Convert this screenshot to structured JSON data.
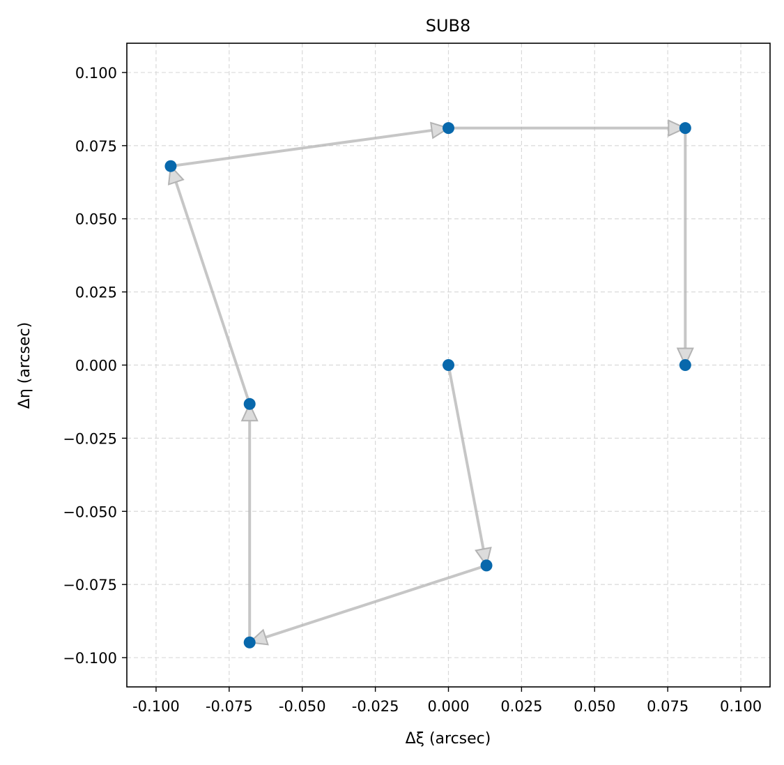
{
  "chart_data": {
    "type": "scatter",
    "title": "SUB8",
    "xlabel": "Δξ (arcsec)",
    "ylabel": "Δη (arcsec)",
    "xlim": [
      -0.11,
      0.11
    ],
    "ylim": [
      -0.11,
      0.11
    ],
    "x_ticks": [
      -0.1,
      -0.075,
      -0.05,
      -0.025,
      0.0,
      0.025,
      0.05,
      0.075,
      0.1
    ],
    "x_tick_labels": [
      "-0.100",
      "-0.075",
      "-0.050",
      "-0.025",
      "0.000",
      "0.025",
      "0.050",
      "0.075",
      "0.100"
    ],
    "y_ticks": [
      0.1,
      0.075,
      0.05,
      0.025,
      0.0,
      -0.025,
      -0.05,
      -0.075,
      -0.1
    ],
    "y_tick_labels": [
      "0.100",
      "0.075",
      "0.050",
      "0.025",
      "0.000",
      "−0.025",
      "−0.050",
      "−0.075",
      "−0.100"
    ],
    "grid": true,
    "points": [
      {
        "x": 0.0,
        "y": 0.0
      },
      {
        "x": 0.013,
        "y": -0.0685
      },
      {
        "x": -0.068,
        "y": -0.0948
      },
      {
        "x": -0.068,
        "y": -0.0133
      },
      {
        "x": -0.095,
        "y": 0.068
      },
      {
        "x": 0.0,
        "y": 0.081
      },
      {
        "x": 0.081,
        "y": 0.081
      },
      {
        "x": 0.081,
        "y": 0.0
      }
    ],
    "path_order": "sequential arrows from each point to the next",
    "colors": {
      "point": "#0868ac",
      "arrow": "#b3b3b3",
      "grid": "#d9d9d9"
    }
  }
}
